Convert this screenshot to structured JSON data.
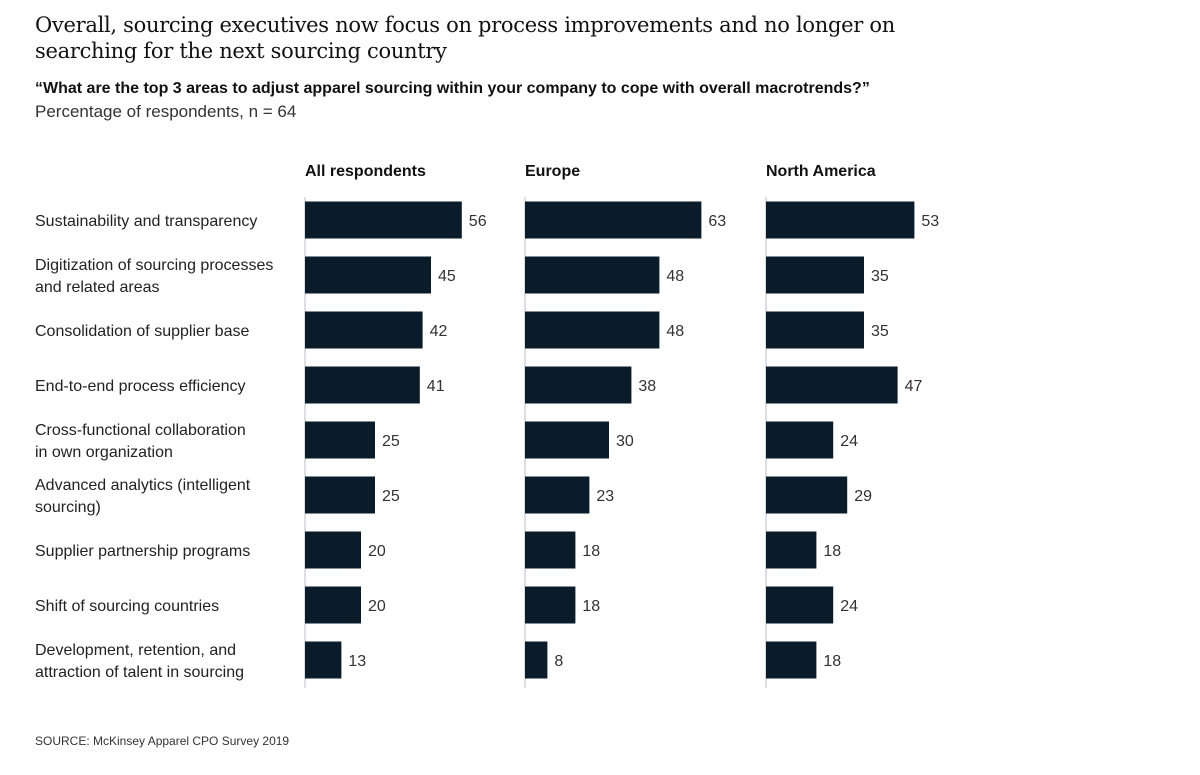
{
  "header": {
    "title": "Overall, sourcing executives now focus on process improvements and no longer on searching for the next sourcing country",
    "question": "“What are the top 3 areas to adjust apparel sourcing within your company to cope with overall macrotrends?”",
    "subtitle": "Percentage of respondents, n = 64"
  },
  "footer": {
    "source": "SOURCE: McKinsey Apparel CPO Survey 2019"
  },
  "colors": {
    "bar": "#0a1b2a",
    "axis": "#cfd4da"
  },
  "chart_data": {
    "type": "bar",
    "orientation": "horizontal",
    "title": "Overall, sourcing executives now focus on process improvements and no longer on searching for the next sourcing country",
    "subtitle": "Percentage of respondents, n = 64",
    "xlabel": "",
    "ylabel": "",
    "grid": false,
    "legend": "none",
    "categories": [
      [
        "Sustainability and transparency"
      ],
      [
        "Digitization of sourcing processes",
        "and related areas"
      ],
      [
        "Consolidation of supplier base"
      ],
      [
        "End-to-end process efficiency"
      ],
      [
        "Cross-functional collaboration",
        "in own organization"
      ],
      [
        "Advanced analytics (intelligent",
        "sourcing)"
      ],
      [
        "Supplier partnership programs"
      ],
      [
        "Shift of sourcing countries"
      ],
      [
        "Development, retention, and",
        "attraction of talent in sourcing"
      ]
    ],
    "series": [
      {
        "name": "All respondents",
        "values": [
          56,
          45,
          42,
          41,
          25,
          25,
          20,
          20,
          13
        ]
      },
      {
        "name": "Europe",
        "values": [
          63,
          48,
          48,
          38,
          30,
          23,
          18,
          18,
          8
        ]
      },
      {
        "name": "North America",
        "values": [
          53,
          35,
          35,
          47,
          24,
          29,
          18,
          24,
          18
        ]
      }
    ],
    "xlim": [
      0,
      70
    ]
  }
}
